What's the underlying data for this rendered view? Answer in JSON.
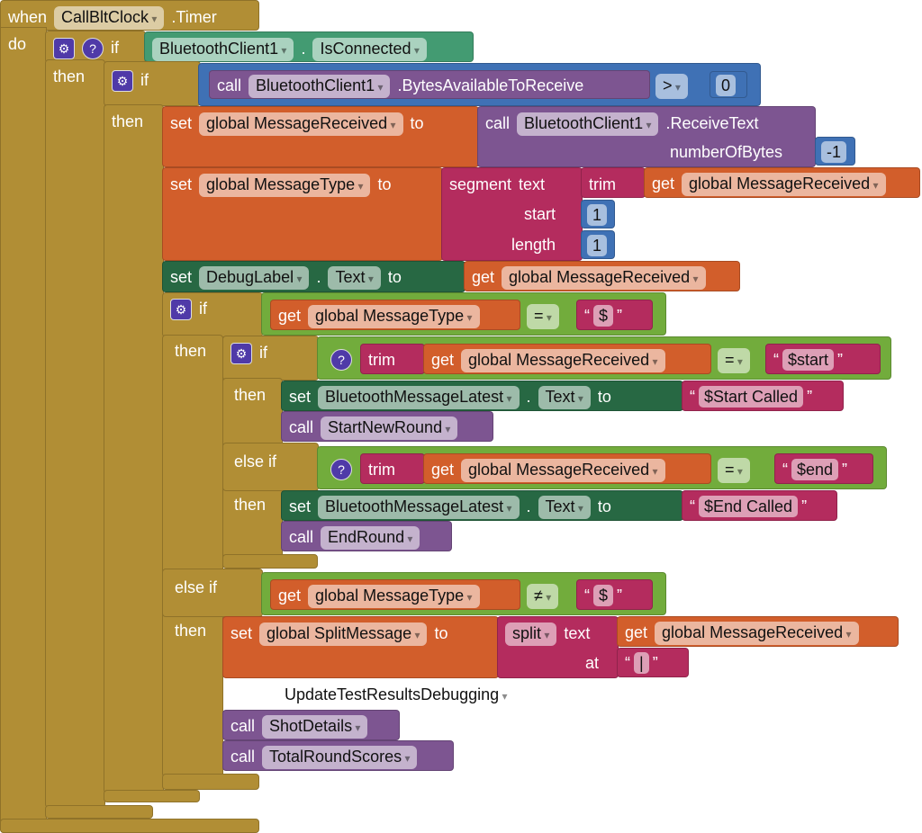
{
  "event": {
    "when": "when",
    "component": "CallBltClock",
    "event": ".Timer",
    "do": "do"
  },
  "labels": {
    "if": "if",
    "then": "then",
    "else_if": "else if",
    "set": "set",
    "to": "to",
    "call": "call",
    "get": "get",
    "dot": ".",
    "gear": "⚙",
    "question": "?"
  },
  "if1": {
    "component": "BluetoothClient1",
    "property": "IsConnected"
  },
  "if2": {
    "component": "BluetoothClient1",
    "method": ".BytesAvailableToReceive",
    "op": ">",
    "value": "0"
  },
  "set1": {
    "var": "global MessageReceived",
    "component": "BluetoothClient1",
    "method": ".ReceiveText",
    "param": "numberOfBytes",
    "value": "-1"
  },
  "set2": {
    "var": "global MessageType",
    "segment": "segment",
    "text": "text",
    "trim": "trim",
    "get_var": "global MessageReceived",
    "start": "start",
    "start_val": "1",
    "length": "length",
    "length_val": "1"
  },
  "set3": {
    "component": "DebugLabel",
    "property": "Text",
    "get_var": "global MessageReceived"
  },
  "if3": {
    "get_var": "global MessageType",
    "op": "=",
    "text": "$"
  },
  "if4a": {
    "trim": "trim",
    "get_var": "global MessageReceived",
    "op": "=",
    "text": "$start",
    "set_component": "BluetoothMessageLatest",
    "set_property": "Text",
    "set_text": "$Start Called",
    "call": "StartNewRound"
  },
  "if4b": {
    "trim": "trim",
    "get_var": "global MessageReceived",
    "op": "=",
    "text": "$end",
    "set_component": "BluetoothMessageLatest",
    "set_property": "Text",
    "set_text": "$End Called",
    "call": "EndRound"
  },
  "elseif3": {
    "get_var": "global MessageType",
    "op": "≠",
    "text": "$"
  },
  "split": {
    "var": "global SplitMessage",
    "split": "split",
    "text": "text",
    "get_var": "global MessageReceived",
    "at": "at",
    "at_val": "|"
  },
  "disabled": {
    "call": "UpdateTestResultsDebugging"
  },
  "calls": [
    "ShotDetails",
    "TotalRoundScores"
  ],
  "colors": {
    "event": "#b18e35",
    "component": "#439b72",
    "math": "#3f71b5",
    "procedure": "#7d5591",
    "variable": "#d25e2b",
    "text": "#b42c5e",
    "setter": "#276843",
    "logic": "#72ac3c"
  }
}
